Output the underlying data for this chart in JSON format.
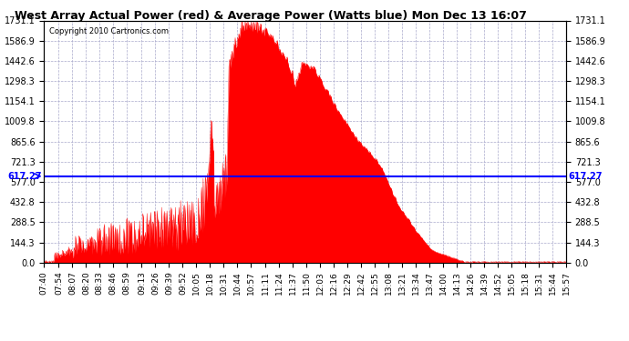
{
  "title": "West Array Actual Power (red) & Average Power (Watts blue) Mon Dec 13 16:07",
  "copyright": "Copyright 2010 Cartronics.com",
  "avg_power": 617.27,
  "ymax": 1731.1,
  "ymin": 0.0,
  "yticks": [
    0.0,
    144.3,
    288.5,
    432.8,
    577.0,
    721.3,
    865.6,
    1009.8,
    1154.1,
    1298.3,
    1442.6,
    1586.9,
    1731.1
  ],
  "background_color": "#ffffff",
  "plot_bg_color": "#ffffff",
  "grid_color": "#aaaacc",
  "line_color_avg": "#0000ff",
  "fill_color": "#ff0000",
  "time_start_minutes": 460,
  "time_end_minutes": 957,
  "x_tick_times": [
    460,
    474,
    487,
    500,
    513,
    526,
    539,
    553,
    566,
    579,
    592,
    605,
    618,
    631,
    644,
    657,
    671,
    684,
    697,
    710,
    723,
    736,
    749,
    762,
    775,
    788,
    801,
    814,
    827,
    840,
    853,
    866,
    879,
    892,
    905,
    918,
    931,
    944,
    957
  ]
}
